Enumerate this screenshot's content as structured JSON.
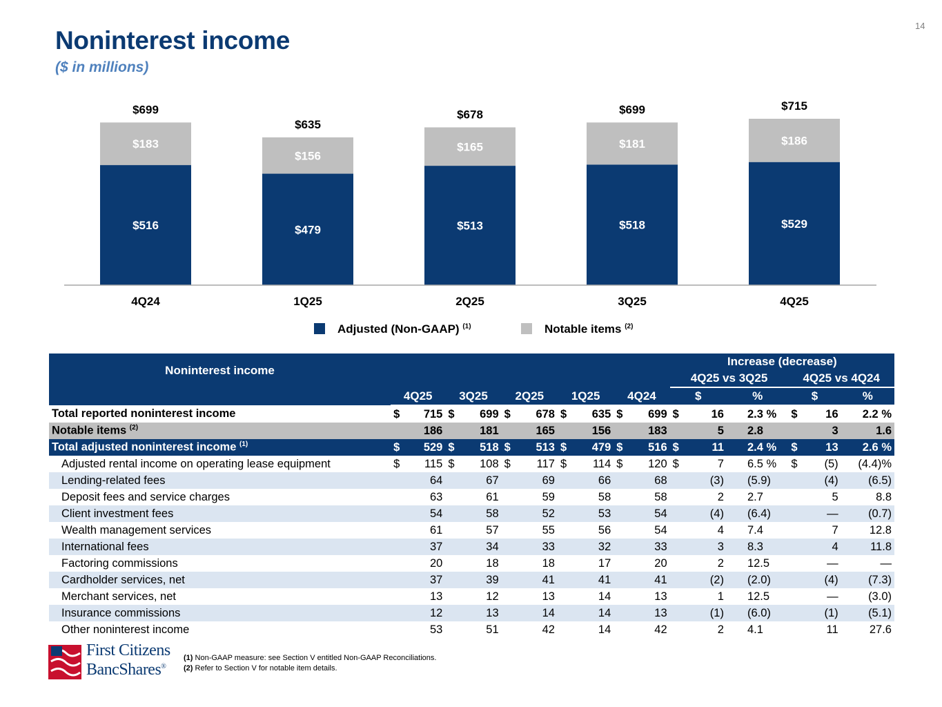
{
  "page_number": "14",
  "title": "Noninterest income",
  "subtitle": "($ in millions)",
  "colors": {
    "navy": "#0b3a72",
    "gray": "#bfbfbf",
    "light": "#dbe5f1",
    "brand_red": "#c8102e"
  },
  "chart_data": {
    "type": "bar",
    "stacked": true,
    "categories": [
      "4Q24",
      "1Q25",
      "2Q25",
      "3Q25",
      "4Q25"
    ],
    "series": [
      {
        "name": "Adjusted (Non-GAAP)",
        "values": [
          516,
          479,
          513,
          518,
          529
        ],
        "labels": [
          "$516",
          "$479",
          "$513",
          "$518",
          "$529"
        ]
      },
      {
        "name": "Notable items",
        "values": [
          183,
          156,
          165,
          181,
          186
        ],
        "labels": [
          "$183",
          "$156",
          "$165",
          "$181",
          "$186"
        ]
      }
    ],
    "totals": [
      699,
      635,
      678,
      699,
      715
    ],
    "total_labels": [
      "$699",
      "$635",
      "$678",
      "$699",
      "$715"
    ],
    "ylim": [
      0,
      715
    ],
    "legend": [
      {
        "label": "Adjusted (Non-GAAP)",
        "note": "(1)"
      },
      {
        "label": "Notable items",
        "note": "(2)"
      }
    ]
  },
  "table": {
    "header_label": "Noninterest income",
    "group_header": "Increase (decrease)",
    "cmp1": "4Q25 vs 3Q25",
    "cmp2": "4Q25 vs 4Q24",
    "periods": [
      "4Q25",
      "3Q25",
      "2Q25",
      "1Q25",
      "4Q24"
    ],
    "dollar": "$",
    "pct": "%",
    "rows": [
      {
        "label": "Total reported noninterest income",
        "note": "",
        "vals": [
          "715",
          "699",
          "678",
          "635",
          "699"
        ],
        "c1d": "16",
        "c1p": "2.3",
        "c2d": "16",
        "c2p": "2.2",
        "style": "bold",
        "dollars": true,
        "pct_sign": " %",
        "pct_sign2": " %"
      },
      {
        "label": "Notable items",
        "note": "(2)",
        "vals": [
          "186",
          "181",
          "165",
          "156",
          "183"
        ],
        "c1d": "5",
        "c1p": "2.8",
        "c2d": "3",
        "c2p": "1.6",
        "style": "gray",
        "dollars": false,
        "pct_sign": "",
        "pct_sign2": ""
      },
      {
        "label": "Total adjusted noninterest income",
        "note": "(1)",
        "vals": [
          "529",
          "518",
          "513",
          "479",
          "516"
        ],
        "c1d": "11",
        "c1p": "2.4",
        "c2d": "13",
        "c2p": "2.6",
        "style": "navy",
        "dollars": true,
        "pct_sign": " %",
        "pct_sign2": " %"
      },
      {
        "label": "Adjusted rental income on operating lease equipment",
        "note": "",
        "vals": [
          "115",
          "108",
          "117",
          "114",
          "120"
        ],
        "c1d": "7",
        "c1p": "6.5",
        "c2d": "(5)",
        "c2p": "(4.4)",
        "style": "plain",
        "dollars": true,
        "pct_sign": " %",
        "pct_sign2": "%"
      },
      {
        "label": "Lending-related fees",
        "note": "",
        "vals": [
          "64",
          "67",
          "69",
          "66",
          "68"
        ],
        "c1d": "(3)",
        "c1p": "(5.9)",
        "c2d": "(4)",
        "c2p": "(6.5)",
        "style": "shade",
        "dollars": false,
        "pct_sign": "",
        "pct_sign2": ""
      },
      {
        "label": "Deposit fees and service charges",
        "note": "",
        "vals": [
          "63",
          "61",
          "59",
          "58",
          "58"
        ],
        "c1d": "2",
        "c1p": "2.7",
        "c2d": "5",
        "c2p": "8.8",
        "style": "plain",
        "dollars": false,
        "pct_sign": "",
        "pct_sign2": ""
      },
      {
        "label": "Client investment fees",
        "note": "",
        "vals": [
          "54",
          "58",
          "52",
          "53",
          "54"
        ],
        "c1d": "(4)",
        "c1p": "(6.4)",
        "c2d": "—",
        "c2p": "(0.7)",
        "style": "shade",
        "dollars": false,
        "pct_sign": "",
        "pct_sign2": ""
      },
      {
        "label": "Wealth management services",
        "note": "",
        "vals": [
          "61",
          "57",
          "55",
          "56",
          "54"
        ],
        "c1d": "4",
        "c1p": "7.4",
        "c2d": "7",
        "c2p": "12.8",
        "style": "plain",
        "dollars": false,
        "pct_sign": "",
        "pct_sign2": ""
      },
      {
        "label": "International fees",
        "note": "",
        "vals": [
          "37",
          "34",
          "33",
          "32",
          "33"
        ],
        "c1d": "3",
        "c1p": "8.3",
        "c2d": "4",
        "c2p": "11.8",
        "style": "shade",
        "dollars": false,
        "pct_sign": "",
        "pct_sign2": ""
      },
      {
        "label": "Factoring commissions",
        "note": "",
        "vals": [
          "20",
          "18",
          "18",
          "17",
          "20"
        ],
        "c1d": "2",
        "c1p": "12.5",
        "c2d": "—",
        "c2p": "—",
        "style": "plain",
        "dollars": false,
        "pct_sign": "",
        "pct_sign2": ""
      },
      {
        "label": "Cardholder services, net",
        "note": "",
        "vals": [
          "37",
          "39",
          "41",
          "41",
          "41"
        ],
        "c1d": "(2)",
        "c1p": "(2.0)",
        "c2d": "(4)",
        "c2p": "(7.3)",
        "style": "shade",
        "dollars": false,
        "pct_sign": "",
        "pct_sign2": ""
      },
      {
        "label": "Merchant services, net",
        "note": "",
        "vals": [
          "13",
          "12",
          "13",
          "14",
          "13"
        ],
        "c1d": "1",
        "c1p": "12.5",
        "c2d": "—",
        "c2p": "(3.0)",
        "style": "plain",
        "dollars": false,
        "pct_sign": "",
        "pct_sign2": ""
      },
      {
        "label": "Insurance commissions",
        "note": "",
        "vals": [
          "12",
          "13",
          "14",
          "14",
          "13"
        ],
        "c1d": "(1)",
        "c1p": "(6.0)",
        "c2d": "(1)",
        "c2p": "(5.1)",
        "style": "shade",
        "dollars": false,
        "pct_sign": "",
        "pct_sign2": ""
      },
      {
        "label": "Other noninterest income",
        "note": "",
        "vals": [
          "53",
          "51",
          "42",
          "14",
          "42"
        ],
        "c1d": "2",
        "c1p": "4.1",
        "c2d": "11",
        "c2p": "27.6",
        "style": "plain",
        "dollars": false,
        "pct_sign": "",
        "pct_sign2": ""
      }
    ]
  },
  "footnotes": [
    {
      "marker": "(1)",
      "text": " Non-GAAP measure: see Section V entitled Non-GAAP Reconciliations."
    },
    {
      "marker": "(2)",
      "text": " Refer to Section V for notable item details."
    }
  ],
  "logo": {
    "line1": "First Citizens",
    "line2": "BancShares",
    "mark": "®"
  }
}
